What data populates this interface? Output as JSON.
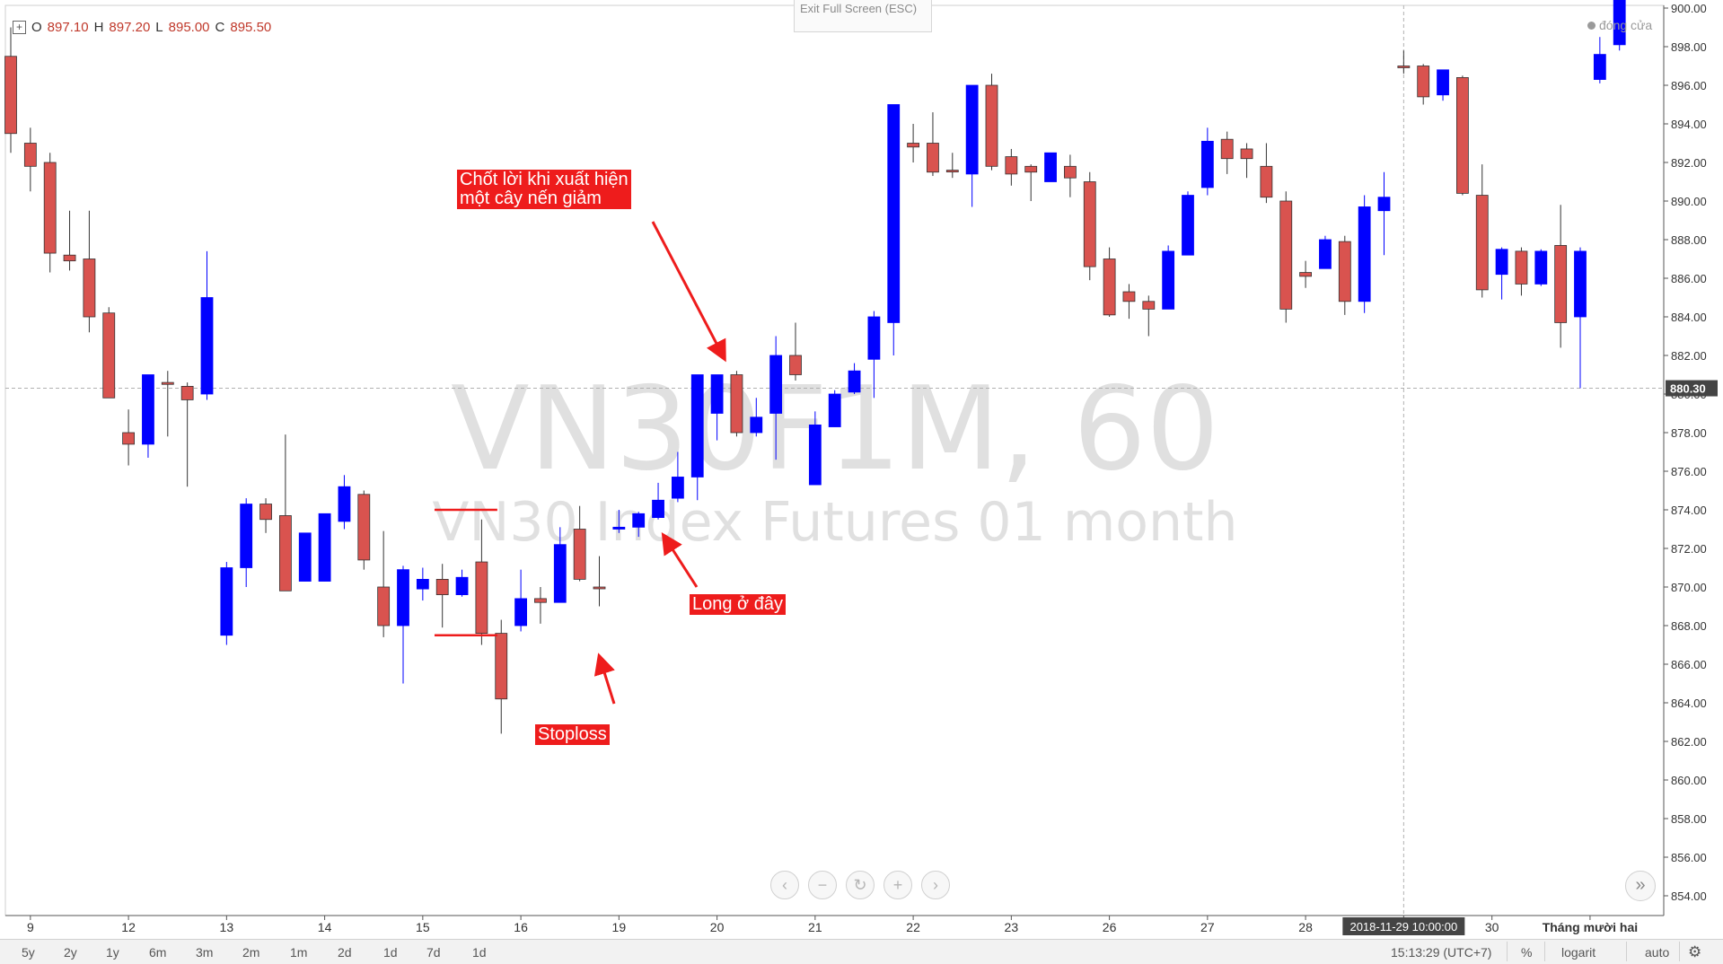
{
  "ohlc": {
    "o_label": "O",
    "o": "897.10",
    "h_label": "H",
    "h": "897.20",
    "l_label": "L",
    "l": "895.00",
    "c_label": "C",
    "c": "895.50"
  },
  "exit_fullscreen": "Exit Full Screen (ESC)",
  "market_status": "đóng cửa",
  "watermark": {
    "symbol": "VN30F1M, 60",
    "description": "VN30 Index Futures 01 month"
  },
  "colors": {
    "up": "#0000ff",
    "down": "#d9534f",
    "annotation": "#ee1c1c",
    "grid_text": "#333333"
  },
  "annotations": [
    {
      "text": "Chốt lời khi xuất hiện\nmột cây nến giảm"
    },
    {
      "text": "Long ở đây"
    },
    {
      "text": "Stoploss"
    }
  ],
  "toolbar": {
    "timeframes": [
      "5y",
      "2y",
      "1y",
      "6m",
      "3m",
      "2m",
      "1m",
      "2d",
      "1d",
      "7d",
      "1d"
    ],
    "time": "15:13:29 (UTC+7)",
    "percent": "%",
    "log": "logarit",
    "auto": "auto"
  },
  "chart_data": {
    "type": "candlestick",
    "interval": "60",
    "ylim": [
      853.5,
      900.5
    ],
    "yticks": [
      854,
      856,
      858,
      860,
      862,
      864,
      866,
      868,
      870,
      872,
      874,
      876,
      878,
      880,
      882,
      884,
      886,
      888,
      890,
      892,
      894,
      896,
      898,
      900
    ],
    "last_price_label": "880.30",
    "crosshair_time_label": "2018-11-29 10:00:00",
    "x_labels": [
      {
        "text": "9",
        "bar": 1
      },
      {
        "text": "12",
        "bar": 6
      },
      {
        "text": "13",
        "bar": 11
      },
      {
        "text": "14",
        "bar": 16
      },
      {
        "text": "15",
        "bar": 21
      },
      {
        "text": "16",
        "bar": 26
      },
      {
        "text": "19",
        "bar": 31
      },
      {
        "text": "20",
        "bar": 36
      },
      {
        "text": "21",
        "bar": 41
      },
      {
        "text": "22",
        "bar": 46
      },
      {
        "text": "23",
        "bar": 51
      },
      {
        "text": "26",
        "bar": 56
      },
      {
        "text": "27",
        "bar": 61
      },
      {
        "text": "28",
        "bar": 66
      },
      {
        "text": "29",
        "bar": 71
      },
      {
        "text": "30",
        "bar": 75.5
      },
      {
        "text": "Tháng mười hai",
        "bar": 80.5
      }
    ],
    "candles": [
      [
        897.5,
        899,
        892.5,
        893.5
      ],
      [
        893,
        893.8,
        890.5,
        891.8
      ],
      [
        892,
        892.5,
        886.3,
        887.3
      ],
      [
        887.2,
        889.5,
        886.4,
        886.9
      ],
      [
        887,
        889.5,
        883.2,
        884
      ],
      [
        884.2,
        884.5,
        879.8,
        879.8
      ],
      [
        878,
        879.2,
        876.3,
        877.4
      ],
      [
        877.4,
        881,
        876.7,
        881
      ],
      [
        880.6,
        881.2,
        877.8,
        880.5
      ],
      [
        880.4,
        880.6,
        875.2,
        879.7
      ],
      [
        880,
        887.4,
        879.7,
        885
      ],
      [
        867.5,
        871.3,
        867,
        871
      ],
      [
        871,
        874.6,
        870,
        874.3
      ],
      [
        874.3,
        874.6,
        872.8,
        873.5
      ],
      [
        873.7,
        877.9,
        869.8,
        869.8
      ],
      [
        870.3,
        872.8,
        870.3,
        872.8
      ],
      [
        870.3,
        873.8,
        870.3,
        873.8
      ],
      [
        873.4,
        875.8,
        873,
        875.2
      ],
      [
        874.8,
        875,
        870.9,
        871.4
      ],
      [
        870,
        872.9,
        867.4,
        868
      ],
      [
        868,
        871.1,
        865,
        870.9
      ],
      [
        869.9,
        871,
        869.3,
        870.4
      ],
      [
        870.4,
        871.2,
        867.9,
        869.6
      ],
      [
        869.6,
        870.9,
        869.5,
        870.5
      ],
      [
        871.3,
        873.5,
        867,
        867.6
      ],
      [
        867.6,
        868.3,
        862.4,
        864.2
      ],
      [
        868,
        870.9,
        867.7,
        869.4
      ],
      [
        869.4,
        870,
        868.1,
        869.2
      ],
      [
        869.2,
        873.1,
        869.2,
        872.2
      ],
      [
        873,
        874.2,
        870.3,
        870.4
      ],
      [
        870,
        871.6,
        869,
        870
      ],
      [
        873,
        874,
        872.8,
        873.1
      ],
      [
        873.1,
        873.9,
        872.6,
        873.8
      ],
      [
        873.6,
        875.4,
        873.5,
        874.5
      ],
      [
        874.6,
        877,
        874.4,
        875.7
      ],
      [
        875.7,
        881,
        874.5,
        881
      ],
      [
        879,
        881,
        877.6,
        881
      ],
      [
        881,
        881.2,
        877.8,
        878
      ],
      [
        878,
        879.8,
        877.8,
        878.8
      ],
      [
        879,
        883,
        876.6,
        882
      ],
      [
        882,
        883.7,
        880.7,
        881
      ],
      [
        875.3,
        879.1,
        875.3,
        878.4
      ],
      [
        878.3,
        880.2,
        878.3,
        880
      ],
      [
        880.1,
        881.6,
        880,
        881.2
      ],
      [
        881.8,
        884.3,
        879.8,
        884
      ],
      [
        883.7,
        895,
        882,
        895
      ],
      [
        893,
        894,
        892,
        892.8
      ],
      [
        893,
        894.6,
        891.3,
        891.5
      ],
      [
        891.6,
        892.5,
        891.2,
        891.6
      ],
      [
        891.4,
        896,
        889.7,
        896
      ],
      [
        896,
        896.6,
        891.6,
        891.8
      ],
      [
        892.3,
        892.7,
        890.8,
        891.4
      ],
      [
        891.8,
        891.9,
        890,
        891.5
      ],
      [
        891,
        892.5,
        891,
        892.5
      ],
      [
        891.8,
        892.4,
        890.2,
        891.2
      ],
      [
        891,
        891.5,
        885.9,
        886.6
      ],
      [
        887,
        887.6,
        884,
        884.1
      ],
      [
        885.3,
        885.7,
        883.9,
        884.8
      ],
      [
        884.8,
        885.1,
        883,
        884.4
      ],
      [
        884.4,
        887.7,
        884.4,
        887.4
      ],
      [
        887.2,
        890.5,
        887.2,
        890.3
      ],
      [
        890.7,
        893.8,
        890.3,
        893.1
      ],
      [
        893.2,
        893.6,
        891.4,
        892.2
      ],
      [
        892.7,
        893,
        891.2,
        892.2
      ],
      [
        891.8,
        893,
        889.9,
        890.2
      ],
      [
        890,
        890.5,
        883.7,
        884.4
      ],
      [
        886.3,
        886.9,
        885.5,
        886.1
      ],
      [
        886.5,
        888.2,
        886.5,
        888
      ],
      [
        887.9,
        888.2,
        884.1,
        884.8
      ],
      [
        884.8,
        890.3,
        884.2,
        889.7
      ],
      [
        889.5,
        891.5,
        887.2,
        890.2
      ],
      [
        897,
        897.8,
        896.6,
        897
      ],
      [
        897,
        897.1,
        895,
        895.4
      ],
      [
        895.5,
        896.7,
        895.2,
        896.8
      ],
      [
        896.4,
        896.5,
        890.3,
        890.4
      ],
      [
        890.3,
        891.9,
        885,
        885.4
      ],
      [
        886.2,
        887.6,
        884.9,
        887.5
      ],
      [
        887.4,
        887.6,
        885.1,
        885.7
      ],
      [
        885.7,
        887.5,
        885.6,
        887.4
      ],
      [
        887.7,
        889.8,
        882.4,
        883.7
      ],
      [
        884,
        887.6,
        880.3,
        887.4
      ],
      [
        896.3,
        898.5,
        896.1,
        897.6
      ],
      [
        898.1,
        900.5,
        897.8,
        900.5
      ]
    ]
  }
}
